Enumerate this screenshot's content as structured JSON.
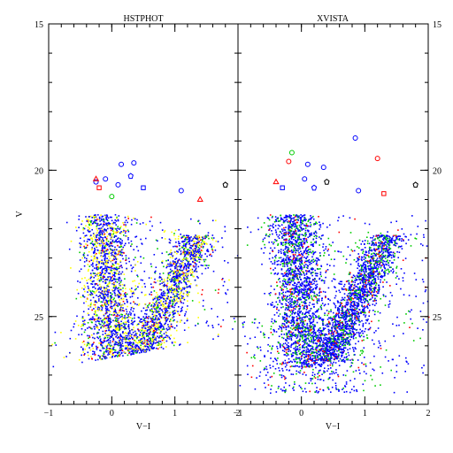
{
  "chart_data": [
    {
      "type": "scatter",
      "title": "HSTPHOT",
      "xlabel": "V−I",
      "ylabel": "V",
      "xlim": [
        -1,
        2
      ],
      "ylim": [
        28,
        15
      ],
      "x_ticks": [
        -1,
        0,
        1,
        2
      ],
      "x_tick_labels": [
        "−1",
        "0",
        "1",
        "2"
      ],
      "y_ticks": [
        15,
        20,
        25
      ],
      "y_tick_labels": [
        "15",
        "20",
        "25"
      ],
      "grid": false,
      "series_colors": [
        "#0000ff",
        "#ffff00",
        "#00cc00",
        "#ff0000"
      ],
      "bright_markers": [
        {
          "x": -0.25,
          "y": 20.4,
          "marker": "circle",
          "color": "#0000ff"
        },
        {
          "x": -0.1,
          "y": 20.3,
          "marker": "circle",
          "color": "#0000ff"
        },
        {
          "x": 0.15,
          "y": 19.8,
          "marker": "circle",
          "color": "#0000ff"
        },
        {
          "x": 0.35,
          "y": 19.75,
          "marker": "circle",
          "color": "#0000ff"
        },
        {
          "x": -0.2,
          "y": 20.6,
          "marker": "square",
          "color": "#ff0000"
        },
        {
          "x": -0.25,
          "y": 20.3,
          "marker": "triangle",
          "color": "#ff0000"
        },
        {
          "x": 0.3,
          "y": 20.2,
          "marker": "star",
          "color": "#0000ff"
        },
        {
          "x": 0.5,
          "y": 20.6,
          "marker": "square",
          "color": "#0000ff"
        },
        {
          "x": 0.1,
          "y": 20.5,
          "marker": "circle",
          "color": "#0000ff"
        },
        {
          "x": 0.0,
          "y": 20.9,
          "marker": "circle",
          "color": "#00cc00"
        },
        {
          "x": 1.1,
          "y": 20.7,
          "marker": "circle",
          "color": "#0000ff"
        },
        {
          "x": 1.4,
          "y": 21.0,
          "marker": "triangle",
          "color": "#ff0000"
        },
        {
          "x": 1.8,
          "y": 20.5,
          "marker": "star",
          "color": "#000000"
        }
      ]
    },
    {
      "type": "scatter",
      "title": "XVISTA",
      "xlabel": "V−I",
      "ylabel": "V",
      "xlim": [
        -1,
        2
      ],
      "ylim": [
        28,
        15
      ],
      "x_ticks": [
        -1,
        0,
        1,
        2
      ],
      "x_tick_labels": [
        "−1",
        "0",
        "1",
        "2"
      ],
      "y_ticks": [
        15,
        20,
        25
      ],
      "y_tick_labels": [
        "15",
        "20",
        "25"
      ],
      "grid": false,
      "series_colors": [
        "#0000ff",
        "#00cc00",
        "#ff0000"
      ],
      "bright_markers": [
        {
          "x": -0.15,
          "y": 19.4,
          "marker": "circle",
          "color": "#00cc00"
        },
        {
          "x": -0.2,
          "y": 19.7,
          "marker": "circle",
          "color": "#ff0000"
        },
        {
          "x": 0.1,
          "y": 19.8,
          "marker": "circle",
          "color": "#0000ff"
        },
        {
          "x": 0.35,
          "y": 19.9,
          "marker": "circle",
          "color": "#0000ff"
        },
        {
          "x": 0.85,
          "y": 18.9,
          "marker": "circle",
          "color": "#0000ff"
        },
        {
          "x": 1.2,
          "y": 19.6,
          "marker": "circle",
          "color": "#ff0000"
        },
        {
          "x": -0.4,
          "y": 20.4,
          "marker": "triangle",
          "color": "#ff0000"
        },
        {
          "x": -0.3,
          "y": 20.6,
          "marker": "square",
          "color": "#0000ff"
        },
        {
          "x": 0.05,
          "y": 20.3,
          "marker": "circle",
          "color": "#0000ff"
        },
        {
          "x": 0.2,
          "y": 20.6,
          "marker": "star",
          "color": "#0000ff"
        },
        {
          "x": 0.4,
          "y": 20.4,
          "marker": "star",
          "color": "#000000"
        },
        {
          "x": 0.9,
          "y": 20.7,
          "marker": "circle",
          "color": "#0000ff"
        },
        {
          "x": 1.3,
          "y": 20.8,
          "marker": "square",
          "color": "#ff0000"
        },
        {
          "x": 1.8,
          "y": 20.5,
          "marker": "star",
          "color": "#000000"
        }
      ]
    }
  ]
}
